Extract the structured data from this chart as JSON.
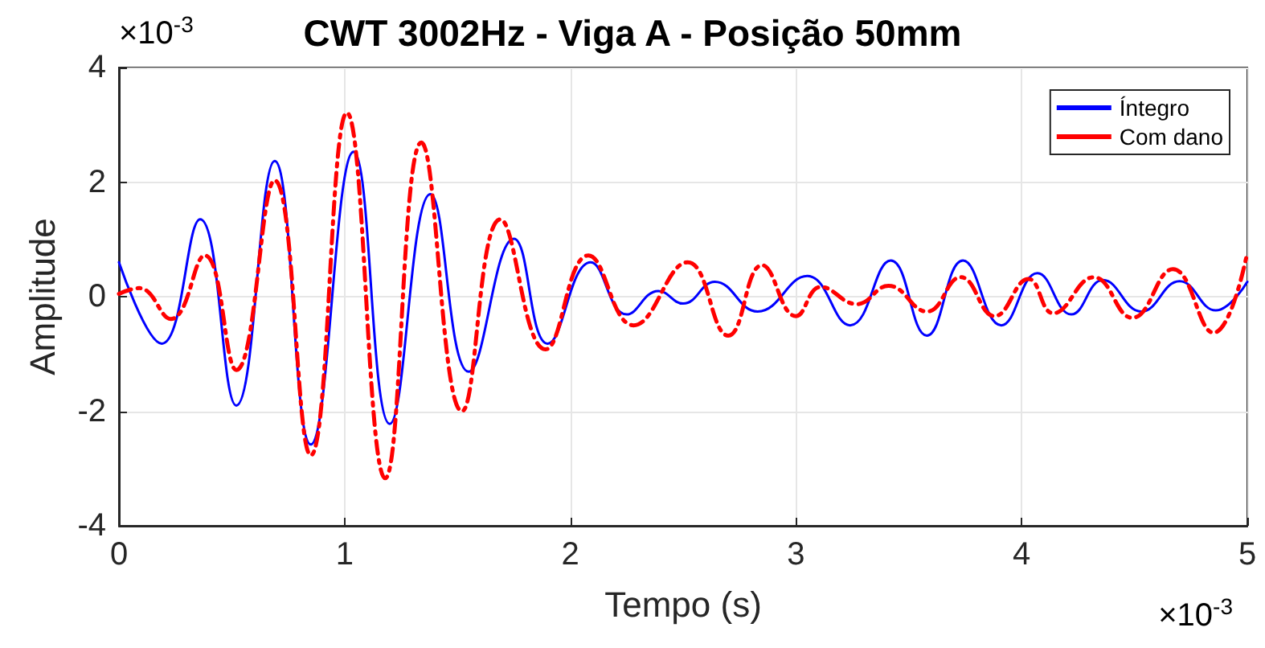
{
  "chart_data": {
    "type": "line",
    "title": "CWT 3002Hz - Viga A - Posição 50mm",
    "xlabel": "Tempo (s)",
    "ylabel": "Amplitude",
    "annotations": [
      "×10$^{-3}$",
      "×10$^{-3}$"
    ],
    "xlim": [
      0,
      5
    ],
    "xticks": [
      0,
      1,
      2,
      3,
      4,
      5
    ],
    "ylim": [
      -4,
      4
    ],
    "yticks": [
      -4,
      -2,
      0,
      2,
      4
    ],
    "grid": true,
    "legend": "top right",
    "marker": "none",
    "series": [
      {
        "name": "Íntegro",
        "color": "#0000ff",
        "line_style": "solid",
        "x": [
          0,
          0.19,
          0.36,
          0.52,
          0.69,
          0.85,
          1.04,
          1.2,
          1.38,
          1.55,
          1.75,
          1.9,
          2.09,
          2.25,
          2.39,
          2.5,
          2.64,
          2.83,
          3.05,
          3.24,
          3.42,
          3.58,
          3.74,
          3.91,
          4.07,
          4.22,
          4.36,
          4.53,
          4.7,
          4.86,
          5
        ],
        "values": [
          0.6,
          -0.82,
          1.35,
          -1.9,
          2.37,
          -2.58,
          2.53,
          -2.22,
          1.79,
          -1.31,
          1.01,
          -0.82,
          0.6,
          -0.31,
          0.1,
          -0.12,
          0.26,
          -0.26,
          0.36,
          -0.5,
          0.63,
          -0.68,
          0.63,
          -0.5,
          0.41,
          -0.31,
          0.29,
          -0.26,
          0.27,
          -0.24,
          0.26
        ]
      },
      {
        "name": "Com dano",
        "color": "#ff0000",
        "line_style": "dashed",
        "x": [
          0,
          0.09,
          0.23,
          0.38,
          0.52,
          0.69,
          0.85,
          1.01,
          1.18,
          1.34,
          1.52,
          1.69,
          1.89,
          2.08,
          2.28,
          2.52,
          2.7,
          2.85,
          3,
          3.11,
          3.27,
          3.41,
          3.58,
          3.73,
          3.88,
          4.03,
          4.14,
          4.32,
          4.49,
          4.67,
          4.85,
          5
        ],
        "values": [
          0.05,
          0.15,
          -0.39,
          0.72,
          -1.28,
          2.03,
          -2.77,
          3.21,
          -3.17,
          2.69,
          -2,
          1.35,
          -0.92,
          0.72,
          -0.5,
          0.6,
          -0.68,
          0.55,
          -0.34,
          0.17,
          -0.13,
          0.19,
          -0.26,
          0.34,
          -0.34,
          0.31,
          -0.29,
          0.34,
          -0.37,
          0.48,
          -0.63,
          0.77
        ]
      }
    ]
  }
}
